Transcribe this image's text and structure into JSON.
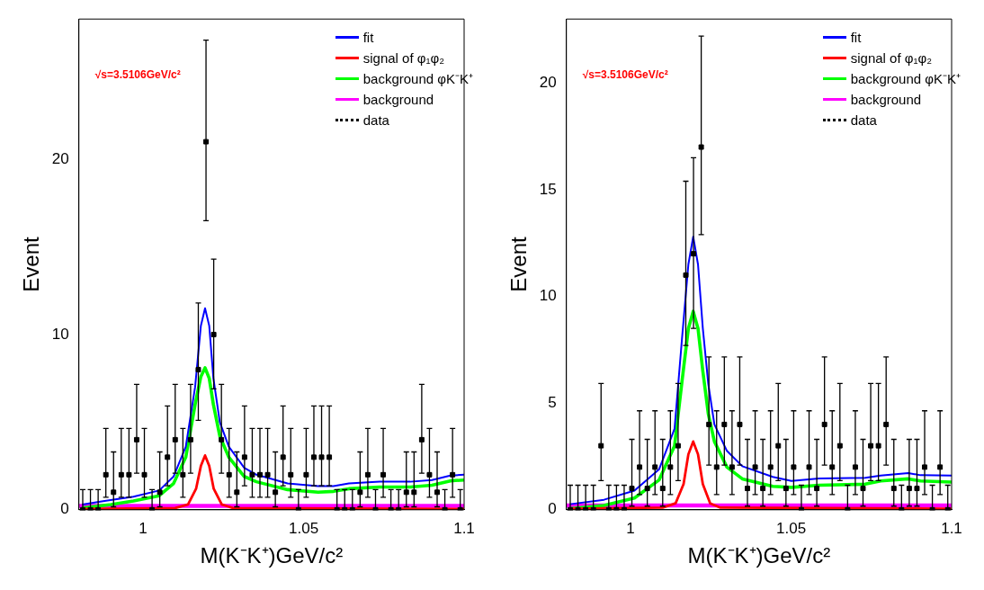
{
  "chart_data": [
    {
      "type": "line",
      "xlabel": "M(K⁻K⁺)GeV/c²",
      "ylabel": "Event",
      "xlim": [
        0.98,
        1.1
      ],
      "xticks": [
        1,
        1.05,
        1.1
      ],
      "ylim": [
        0,
        28
      ],
      "yticks": [
        0,
        10,
        20
      ],
      "legend": "top right",
      "annotations": [
        "√s=3.5106GeV/c²"
      ],
      "x": [
        0.9812,
        0.9836,
        0.986,
        0.9884,
        0.9908,
        0.9932,
        0.9956,
        0.998,
        1.0004,
        1.0028,
        1.0052,
        1.0076,
        1.01,
        1.0124,
        1.0148,
        1.0172,
        1.0196,
        1.022,
        1.0244,
        1.0268,
        1.0292,
        1.0316,
        1.034,
        1.0364,
        1.0388,
        1.0412,
        1.0436,
        1.046,
        1.0484,
        1.0508,
        1.0532,
        1.0556,
        1.058,
        1.0604,
        1.0628,
        1.0652,
        1.0676,
        1.07,
        1.0724,
        1.0748,
        1.0772,
        1.0796,
        1.082,
        1.0844,
        1.0868,
        1.0892,
        1.0916,
        1.094,
        1.0964,
        1.0988
      ],
      "series": [
        {
          "name": "fit",
          "color": "#0000ff",
          "x": [
            0.981,
            0.988,
            0.997,
            1.005,
            1.0095,
            1.0133,
            1.0162,
            1.018,
            1.0193,
            1.0206,
            1.0219,
            1.0239,
            1.0267,
            1.0315,
            1.0353,
            1.045,
            1.0545,
            1.0593,
            1.0641,
            1.0737,
            1.0832,
            1.09,
            1.0957,
            1.1
          ],
          "values": [
            0.3,
            0.5,
            0.75,
            1.1,
            1.9,
            3.6,
            7,
            10.5,
            11.5,
            10.5,
            7.5,
            5,
            3.6,
            2.4,
            2,
            1.5,
            1.35,
            1.35,
            1.5,
            1.6,
            1.6,
            1.7,
            1.95,
            2
          ]
        },
        {
          "name": "signal of φ₁φ₂",
          "color": "#ff0000",
          "x": [
            0.981,
            1.01,
            1.014,
            1.0165,
            1.018,
            1.0193,
            1.0206,
            1.022,
            1.0245,
            1.028,
            1.1
          ],
          "values": [
            0.05,
            0.1,
            0.3,
            1.2,
            2.5,
            3.1,
            2.5,
            1.2,
            0.3,
            0.1,
            0.05
          ]
        },
        {
          "name": "background φK⁻K⁺",
          "color": "#00ff00",
          "x": [
            0.981,
            0.99,
            0.997,
            1.005,
            1.0095,
            1.0133,
            1.0162,
            1.018,
            1.0193,
            1.0206,
            1.0219,
            1.0239,
            1.0267,
            1.0315,
            1.0353,
            1.045,
            1.0545,
            1.0593,
            1.0641,
            1.0737,
            1.0832,
            1.09,
            1.0957,
            1.1
          ],
          "values": [
            0.1,
            0.3,
            0.5,
            0.8,
            1.5,
            3,
            6,
            7.6,
            8.1,
            7.5,
            6,
            4.2,
            3,
            1.9,
            1.6,
            1.15,
            1,
            1.05,
            1.2,
            1.3,
            1.3,
            1.4,
            1.65,
            1.7
          ]
        },
        {
          "name": "background",
          "color": "#ff00ff",
          "x": [
            0.98,
            1.1
          ],
          "values": [
            0.22,
            0.22
          ]
        },
        {
          "name": "data",
          "type": "scatter",
          "marker": "square",
          "color": "#000000",
          "values": [
            0,
            0,
            0,
            2,
            1,
            2,
            2,
            4,
            2,
            0,
            1,
            3,
            4,
            2,
            4,
            8,
            21,
            10,
            4,
            2,
            1,
            3,
            2,
            2,
            2,
            1,
            3,
            2,
            0,
            2,
            3,
            3,
            3,
            0,
            0,
            0,
            1,
            2,
            0,
            2,
            0,
            0,
            1,
            1,
            4,
            2,
            1,
            0,
            2,
            0
          ],
          "errors": [
            [
              0,
              1.15
            ],
            [
              0,
              1.15
            ],
            [
              0,
              1.15
            ],
            [
              0.71,
              4.64
            ],
            [
              0.17,
              3.3
            ],
            [
              0.71,
              4.64
            ],
            [
              0.71,
              4.64
            ],
            [
              2.09,
              7.16
            ],
            [
              0.71,
              4.64
            ],
            [
              0,
              1.15
            ],
            [
              0.17,
              3.3
            ],
            [
              1.37,
              5.92
            ],
            [
              2.09,
              7.16
            ],
            [
              0.71,
              4.64
            ],
            [
              2.09,
              7.16
            ],
            [
              5.1,
              11.8
            ],
            [
              16.5,
              26.8
            ],
            [
              6.9,
              14.3
            ],
            [
              2.09,
              7.16
            ],
            [
              0.71,
              4.64
            ],
            [
              0.17,
              3.3
            ],
            [
              1.37,
              5.92
            ],
            [
              0.71,
              4.64
            ],
            [
              0.71,
              4.64
            ],
            [
              0.71,
              4.64
            ],
            [
              0.17,
              3.3
            ],
            [
              1.37,
              5.92
            ],
            [
              0.71,
              4.64
            ],
            [
              0,
              1.15
            ],
            [
              0.71,
              4.64
            ],
            [
              1.37,
              5.92
            ],
            [
              1.37,
              5.92
            ],
            [
              1.37,
              5.92
            ],
            [
              0,
              1.15
            ],
            [
              0,
              1.15
            ],
            [
              0,
              1.15
            ],
            [
              0.17,
              3.3
            ],
            [
              0.71,
              4.64
            ],
            [
              0,
              1.15
            ],
            [
              0.71,
              4.64
            ],
            [
              0,
              1.15
            ],
            [
              0,
              1.15
            ],
            [
              0.17,
              3.3
            ],
            [
              0.17,
              3.3
            ],
            [
              2.09,
              7.16
            ],
            [
              0.71,
              4.64
            ],
            [
              0.17,
              3.3
            ],
            [
              0,
              1.15
            ],
            [
              0.71,
              4.64
            ],
            [
              0,
              1.15
            ]
          ]
        }
      ]
    },
    {
      "type": "line",
      "xlabel": "M(K⁻K⁺)GeV/c²",
      "ylabel": "Event",
      "xlim": [
        0.98,
        1.1
      ],
      "xticks": [
        1,
        1.05,
        1.1
      ],
      "ylim": [
        0,
        23
      ],
      "yticks": [
        0,
        5,
        10,
        15,
        20
      ],
      "legend": "top right",
      "annotations": [
        "√s=3.5106GeV/c²"
      ],
      "x": [
        0.9812,
        0.9836,
        0.986,
        0.9884,
        0.9908,
        0.9932,
        0.9956,
        0.998,
        1.0004,
        1.0028,
        1.0052,
        1.0076,
        1.01,
        1.0124,
        1.0148,
        1.0172,
        1.0196,
        1.022,
        1.0244,
        1.0268,
        1.0292,
        1.0316,
        1.034,
        1.0364,
        1.0388,
        1.0412,
        1.0436,
        1.046,
        1.0484,
        1.0508,
        1.0532,
        1.0556,
        1.058,
        1.0604,
        1.0628,
        1.0652,
        1.0676,
        1.07,
        1.0724,
        1.0748,
        1.0772,
        1.0796,
        1.082,
        1.0844,
        1.0868,
        1.0892,
        1.0916,
        1.094,
        1.0964,
        1.0988
      ],
      "series": [
        {
          "name": "fit",
          "color": "#0000ff",
          "x": [
            0.9811,
            0.9917,
            1.0012,
            1.0089,
            1.0137,
            1.016,
            1.018,
            1.0195,
            1.021,
            1.0225,
            1.0242,
            1.0261,
            1.03,
            1.0348,
            1.0443,
            1.0501,
            1.0587,
            1.0731,
            1.0779,
            1.0865,
            1.0903,
            1.1
          ],
          "values": [
            0.26,
            0.47,
            0.9,
            1.9,
            3.8,
            8,
            11.5,
            12.8,
            11.5,
            8.5,
            5.9,
            4,
            2.76,
            2.04,
            1.54,
            1.35,
            1.47,
            1.5,
            1.6,
            1.72,
            1.62,
            1.6
          ]
        },
        {
          "name": "signal of φ₁φ₂",
          "color": "#ff0000",
          "x": [
            0.981,
            1.01,
            1.014,
            1.0165,
            1.018,
            1.0195,
            1.021,
            1.0225,
            1.0248,
            1.028,
            1.1
          ],
          "values": [
            0.05,
            0.1,
            0.3,
            1.2,
            2.6,
            3.2,
            2.6,
            1.2,
            0.3,
            0.1,
            0.05
          ]
        },
        {
          "name": "background φK⁻K⁺",
          "color": "#00ff00",
          "x": [
            0.9811,
            0.9917,
            1.0012,
            1.0089,
            1.0137,
            1.016,
            1.018,
            1.0195,
            1.021,
            1.0225,
            1.0242,
            1.0261,
            1.03,
            1.0348,
            1.0443,
            1.0501,
            1.0587,
            1.0731,
            1.0779,
            1.0865,
            1.0903,
            1.1
          ],
          "values": [
            0.05,
            0.2,
            0.55,
            1.4,
            3,
            6,
            8.5,
            9.3,
            8.5,
            6.5,
            4.5,
            3.2,
            2,
            1.45,
            1.1,
            1.05,
            1.15,
            1.2,
            1.35,
            1.45,
            1.35,
            1.3
          ]
        },
        {
          "name": "background",
          "color": "#ff00ff",
          "x": [
            0.98,
            1.1
          ],
          "values": [
            0.2,
            0.2
          ]
        },
        {
          "name": "data",
          "type": "scatter",
          "marker": "square",
          "color": "#000000",
          "values": [
            0,
            0,
            0,
            0,
            3,
            0,
            0,
            0,
            1,
            2,
            1,
            2,
            1,
            2,
            3,
            11,
            12,
            17,
            4,
            2,
            4,
            2,
            4,
            1,
            2,
            1,
            2,
            3,
            1,
            2,
            0,
            2,
            1,
            4,
            2,
            3,
            0,
            2,
            1,
            3,
            3,
            4,
            1,
            0,
            1,
            1,
            2,
            0,
            2,
            0
          ],
          "errors": [
            [
              0,
              1.15
            ],
            [
              0,
              1.15
            ],
            [
              0,
              1.15
            ],
            [
              0,
              1.15
            ],
            [
              1.37,
              5.92
            ],
            [
              0,
              1.15
            ],
            [
              0,
              1.15
            ],
            [
              0,
              1.15
            ],
            [
              0.17,
              3.3
            ],
            [
              0.71,
              4.64
            ],
            [
              0.17,
              3.3
            ],
            [
              0.71,
              4.64
            ],
            [
              0.17,
              3.3
            ],
            [
              0.71,
              4.64
            ],
            [
              1.37,
              5.92
            ],
            [
              7.7,
              15.4
            ],
            [
              8.5,
              16.5
            ],
            [
              12.9,
              22.2
            ],
            [
              2.09,
              7.16
            ],
            [
              0.71,
              4.64
            ],
            [
              2.09,
              7.16
            ],
            [
              0.71,
              4.64
            ],
            [
              2.09,
              7.16
            ],
            [
              0.17,
              3.3
            ],
            [
              0.71,
              4.64
            ],
            [
              0.17,
              3.3
            ],
            [
              0.71,
              4.64
            ],
            [
              1.37,
              5.92
            ],
            [
              0.17,
              3.3
            ],
            [
              0.71,
              4.64
            ],
            [
              0,
              1.15
            ],
            [
              0.71,
              4.64
            ],
            [
              0.17,
              3.3
            ],
            [
              2.09,
              7.16
            ],
            [
              0.71,
              4.64
            ],
            [
              1.37,
              5.92
            ],
            [
              0,
              1.15
            ],
            [
              0.71,
              4.64
            ],
            [
              0.17,
              3.3
            ],
            [
              1.37,
              5.92
            ],
            [
              1.37,
              5.92
            ],
            [
              2.09,
              7.16
            ],
            [
              0.17,
              3.3
            ],
            [
              0,
              1.15
            ],
            [
              0.17,
              3.3
            ],
            [
              0.17,
              3.3
            ],
            [
              0.71,
              4.64
            ],
            [
              0,
              1.15
            ],
            [
              0.71,
              4.64
            ],
            [
              0,
              1.15
            ]
          ]
        }
      ]
    }
  ]
}
